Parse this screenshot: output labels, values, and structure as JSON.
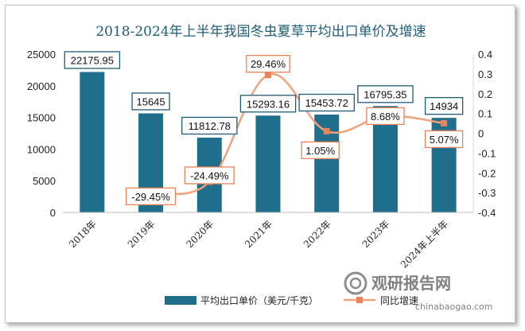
{
  "chart_data": {
    "type": "bar",
    "title": "2018-2024年上半年我国冬虫夏草平均出口单价及增速",
    "categories": [
      "2018年",
      "2019年",
      "2020年",
      "2021年",
      "2022年",
      "2023年",
      "2024年上半年"
    ],
    "series": [
      {
        "name": "平均出口单价（美元/千克）",
        "type": "bar",
        "axis": "left",
        "color": "#1f6e8c",
        "values": [
          22175.95,
          15645,
          11812.78,
          15293.16,
          15453.72,
          16795.35,
          14934
        ],
        "labels": [
          "22175.95",
          "15645",
          "11812.78",
          "15293.16",
          "15453.72",
          "16795.35",
          "14934"
        ]
      },
      {
        "name": "同比增速",
        "type": "line",
        "axis": "right",
        "color": "#f2a27a",
        "values": [
          null,
          -0.2945,
          -0.2449,
          0.2946,
          0.0105,
          0.0868,
          0.0507
        ],
        "labels": [
          "",
          "-29.45%",
          "-24.49%",
          "29.46%",
          "1.05%",
          "8.68%",
          "5.07%"
        ]
      }
    ],
    "y_left": {
      "min": 0,
      "max": 25000,
      "ticks": [
        "0",
        "5000",
        "10000",
        "15000",
        "20000",
        "25000"
      ]
    },
    "y_right": {
      "min": -0.4,
      "max": 0.4,
      "ticks": [
        "-0.4",
        "-0.3",
        "-0.2",
        "-0.1",
        "0",
        "0.1",
        "0.2",
        "0.3",
        "0.4"
      ]
    },
    "grid": false,
    "legend": "bottom"
  },
  "watermark": {
    "name": "观研报告网",
    "url": "chinabaogao.com"
  }
}
